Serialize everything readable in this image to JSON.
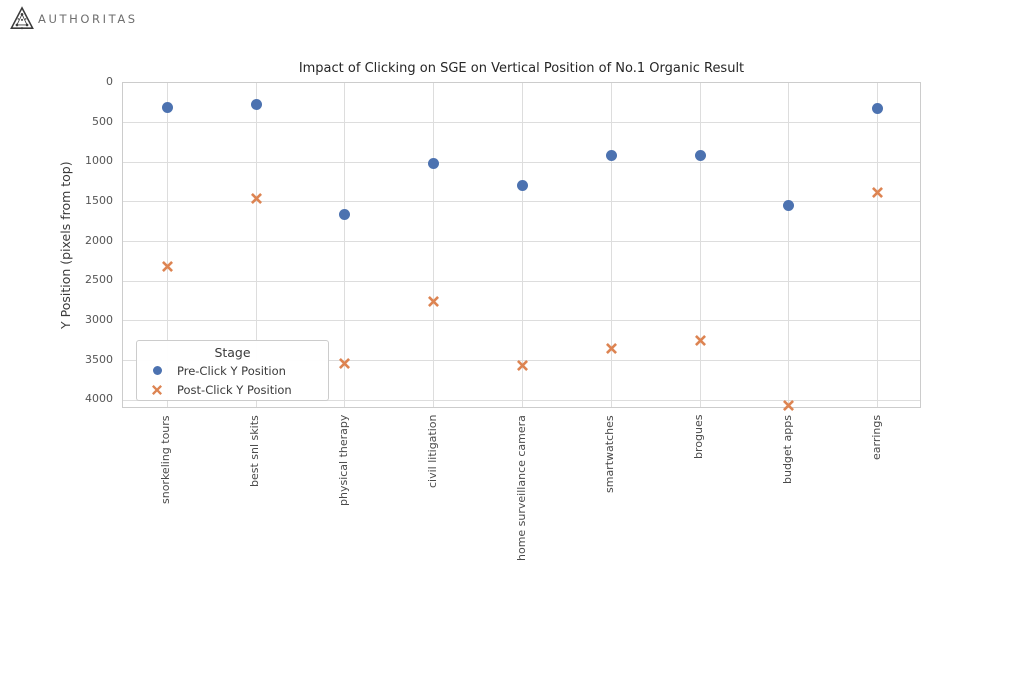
{
  "logo": {
    "text": "AUTHORITAS"
  },
  "chart_data": {
    "type": "scatter",
    "title": "Impact of Clicking on SGE on Vertical Position of No.1 Organic Result",
    "xlabel": "",
    "ylabel": "Y Position (pixels from top)",
    "categories": [
      "snorkeling tours",
      "best snl skits",
      "physical therapy",
      "civil litigation",
      "home surveillance camera",
      "smartwatches",
      "brogues",
      "budget apps",
      "earrings"
    ],
    "series": [
      {
        "name": "Pre-Click Y Position",
        "marker": "circle",
        "color": "#4C72B0",
        "values": [
          310,
          270,
          1660,
          1010,
          1290,
          910,
          910,
          1550,
          320
        ]
      },
      {
        "name": "Post-Click Y Position",
        "marker": "x",
        "color": "#DD8452",
        "values": [
          2260,
          1400,
          3480,
          2710,
          3510,
          3300,
          3200,
          4020,
          1330
        ]
      }
    ],
    "legend_title": "Stage",
    "legend_position": "lower left",
    "y_axis": {
      "min": 0,
      "max_visible_tick": 4000,
      "axis_bottom_value": 4110,
      "inverted": true,
      "ticks": [
        0,
        500,
        1000,
        1500,
        2000,
        2500,
        3000,
        3500,
        4000
      ]
    },
    "grid": true,
    "colors": {
      "grid": "#dddddd",
      "spine": "#cccccc",
      "tick_text": "#555555",
      "title_text": "#262626"
    }
  }
}
